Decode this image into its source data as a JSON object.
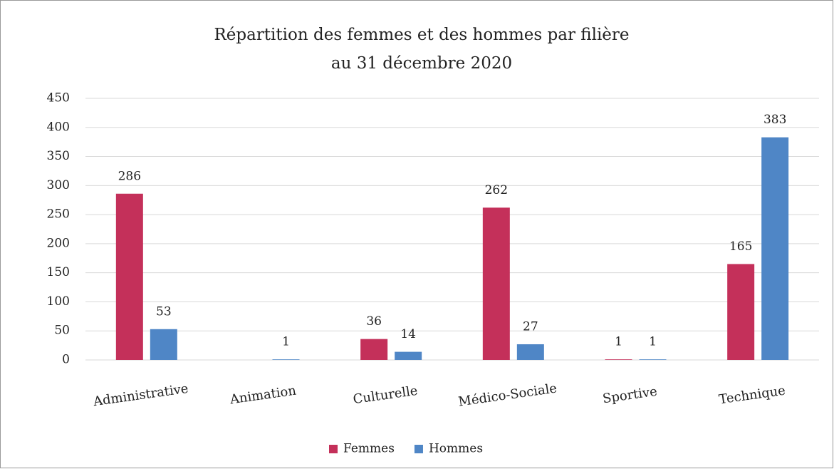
{
  "chart_data": {
    "type": "bar",
    "title": [
      "Répartition des femmes et des hommes par filière",
      "au 31 décembre 2020"
    ],
    "categories": [
      "Administrative",
      "Animation",
      "Culturelle",
      "Médico-Sociale",
      "Sportive",
      "Technique"
    ],
    "series": [
      {
        "name": "Femmes",
        "color": "#c4305a",
        "values": [
          286,
          null,
          36,
          262,
          1,
          165
        ]
      },
      {
        "name": "Hommes",
        "color": "#4f86c6",
        "values": [
          53,
          1,
          14,
          27,
          1,
          383
        ]
      }
    ],
    "ylim": [
      0,
      450
    ],
    "yticks": [
      0,
      50,
      100,
      150,
      200,
      250,
      300,
      350,
      400,
      450
    ],
    "grid": true,
    "legend": "bottom",
    "data_labels": true
  }
}
